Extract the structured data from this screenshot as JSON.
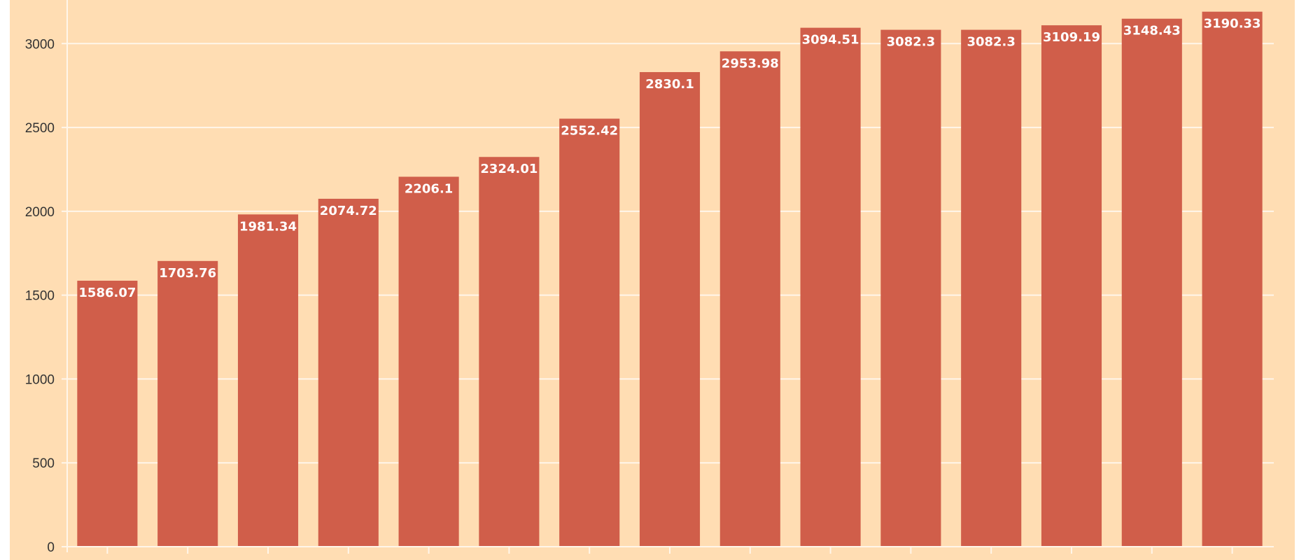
{
  "chart_data": {
    "type": "bar",
    "title": "",
    "xlabel": "",
    "ylabel": "",
    "categories": [
      "",
      "",
      "",
      "",
      "",
      "",
      "",
      "",
      "",
      "",
      "",
      "",
      "",
      "",
      ""
    ],
    "values": [
      1586.07,
      1703.76,
      1981.34,
      2074.72,
      2206.1,
      2324.01,
      2552.42,
      2830.1,
      2953.98,
      3094.51,
      3082.3,
      3082.3,
      3109.19,
      3148.43,
      3190.33
    ],
    "value_labels": [
      "1586.07",
      "1703.76",
      "1981.34",
      "2074.72",
      "2206.1",
      "2324.01",
      "2552.42",
      "2830.1",
      "2953.98",
      "3094.51",
      "3082.3",
      "3082.3",
      "3109.19",
      "3148.43",
      "3190.33"
    ],
    "ylim": [
      0,
      3260
    ],
    "yticks": [
      0,
      500,
      1000,
      1500,
      2000,
      2500,
      3000
    ],
    "ytick_labels": [
      "0",
      "500",
      "1000",
      "1500",
      "2000",
      "2500",
      "3000"
    ],
    "grid": true,
    "legend": "none",
    "colors": {
      "background": "#FFDDB3",
      "bar": "#D05E4A",
      "grid": "#FFF6EA",
      "bar_label": "#FFFFFF",
      "axis_text": "#333333"
    }
  }
}
